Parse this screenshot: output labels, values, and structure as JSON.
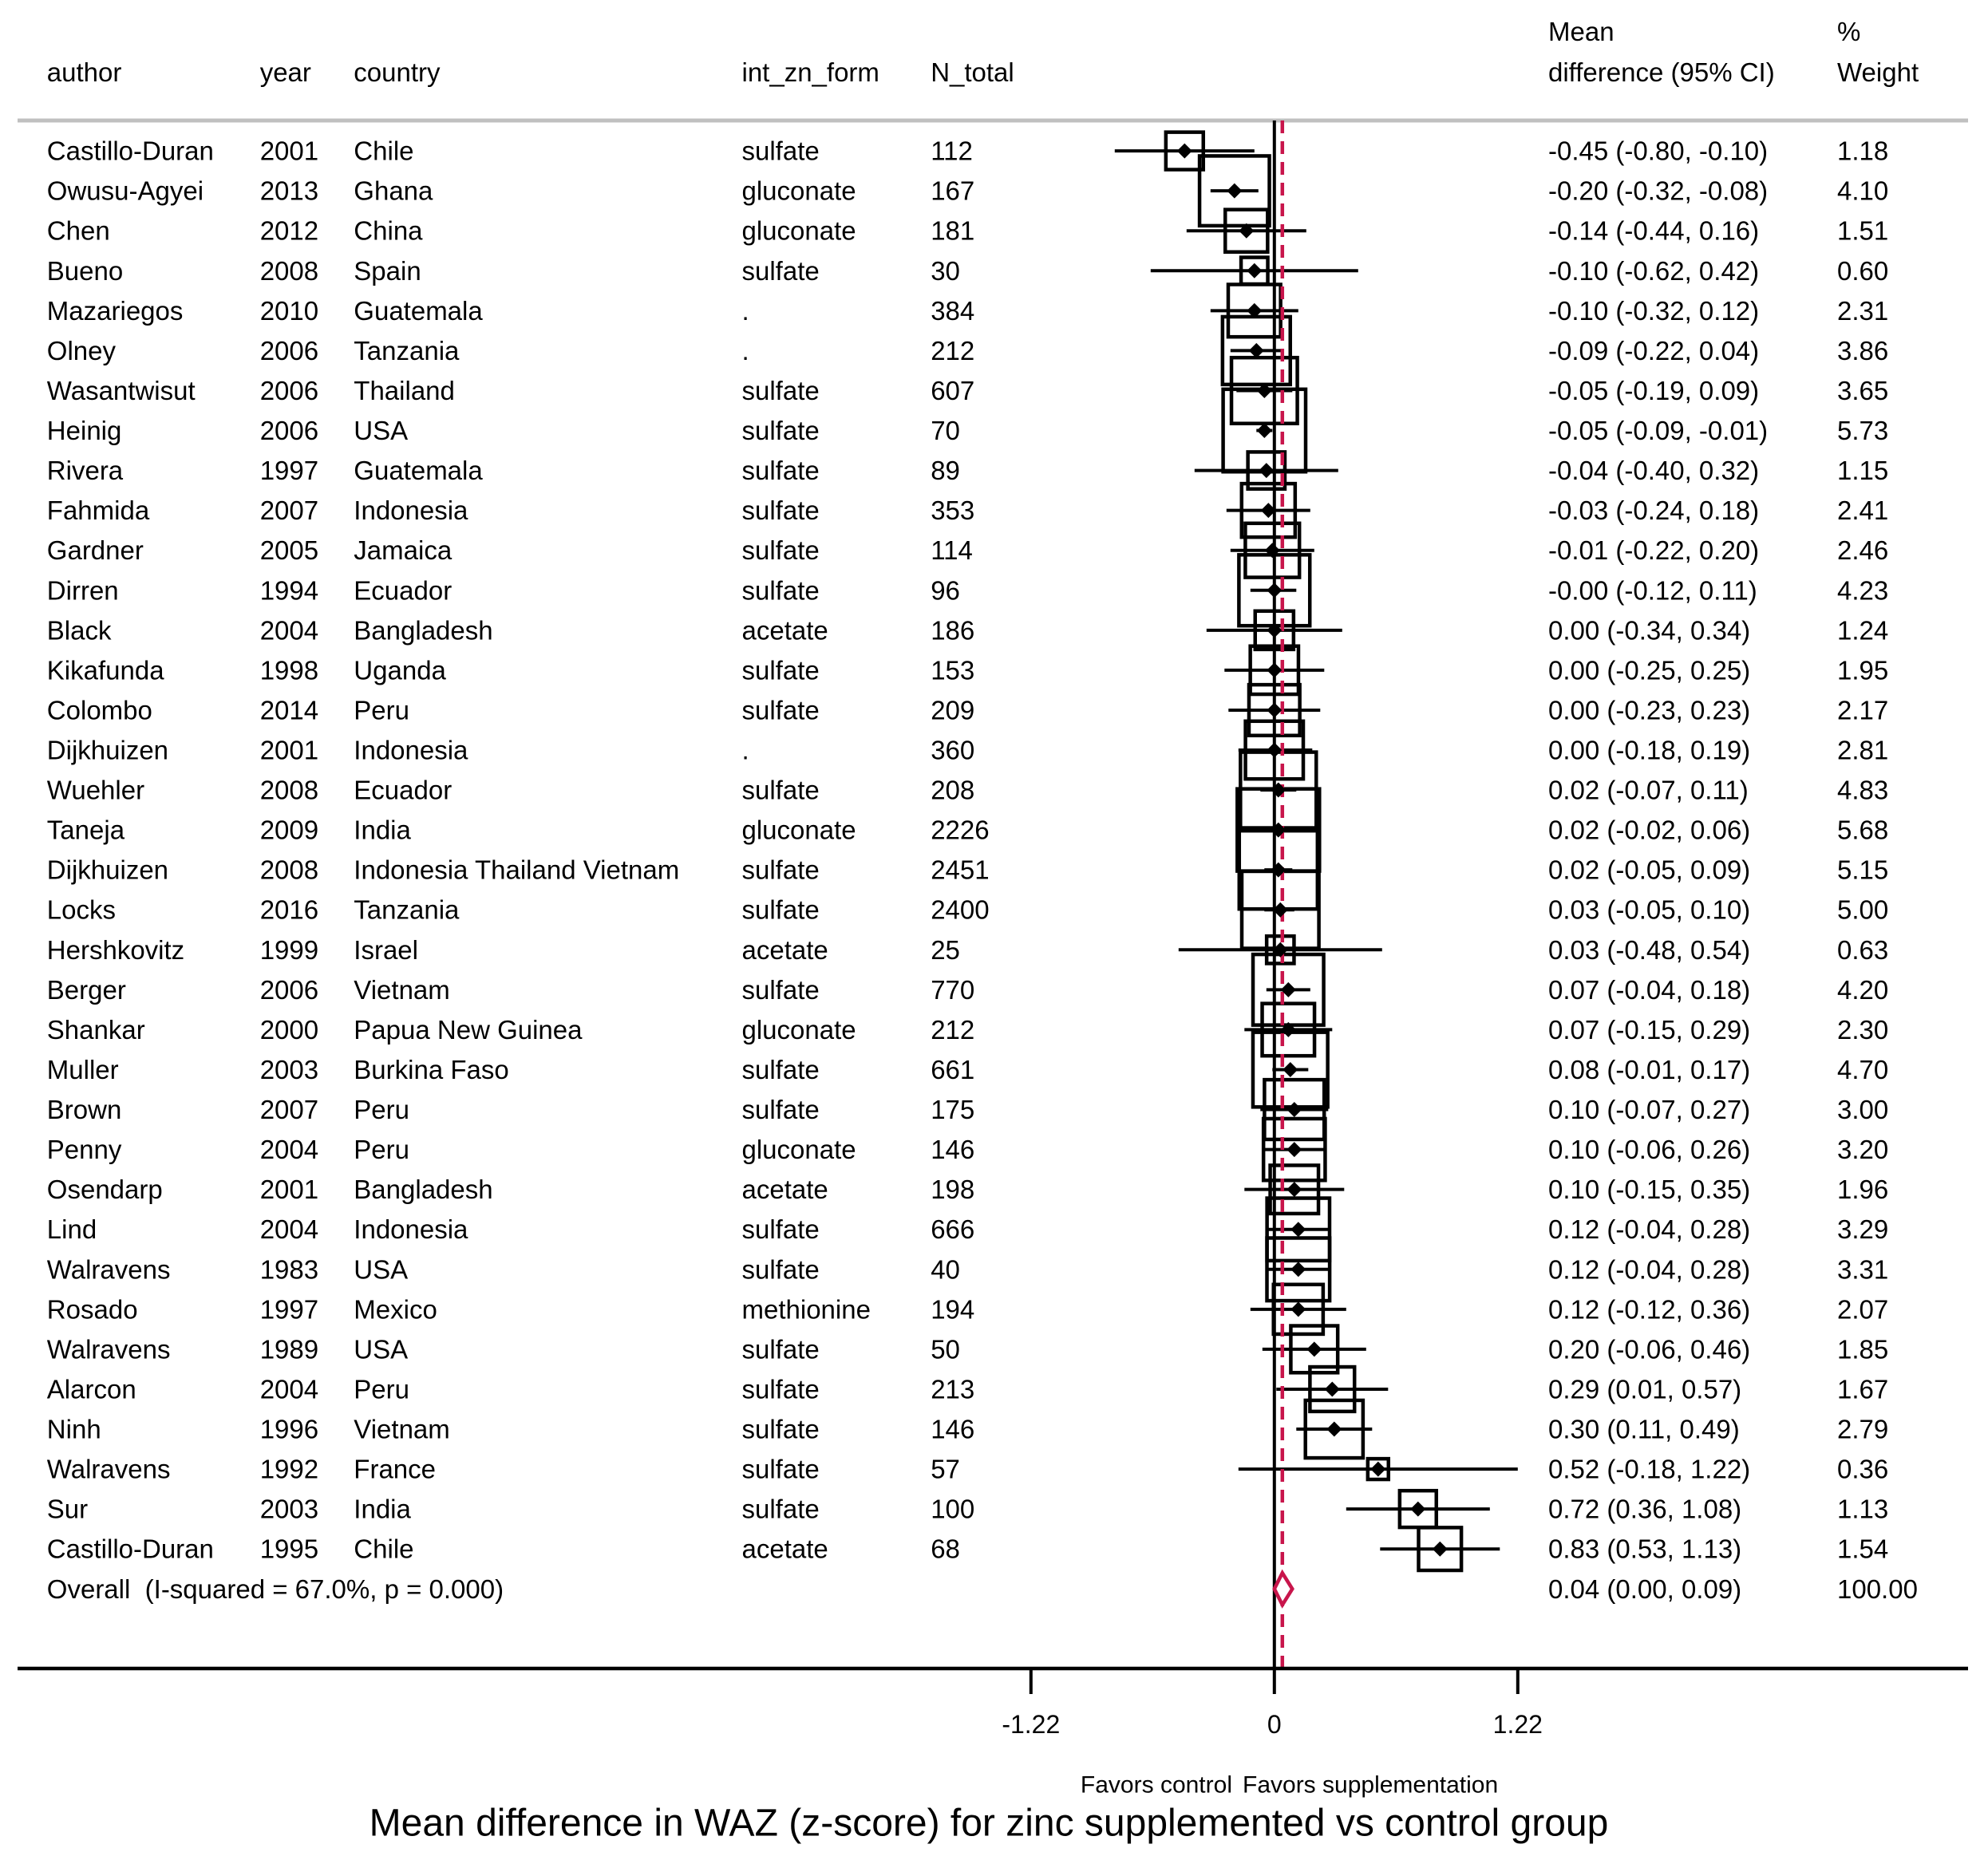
{
  "chart_data": {
    "type": "scatter",
    "title": "Mean difference in WAZ (z-score) for zinc supplemented vs control group",
    "columns": {
      "author": "author",
      "year": "year",
      "country": "country",
      "form": "int_zn_form",
      "n": "N_total",
      "ci_line1": "Mean",
      "ci_line2": "difference (95% CI)",
      "weight_line1": "%",
      "weight_line2": "Weight"
    },
    "rows": [
      {
        "author": "Castillo-Duran",
        "year": 2001,
        "country": "Chile",
        "form": "sulfate",
        "n": 112,
        "md": -0.45,
        "lo": -0.8,
        "hi": -0.1,
        "ci": "-0.45 (-0.80, -0.10)",
        "weight": "1.18"
      },
      {
        "author": "Owusu-Agyei",
        "year": 2013,
        "country": "Ghana",
        "form": "gluconate",
        "n": 167,
        "md": -0.2,
        "lo": -0.32,
        "hi": -0.08,
        "ci": "-0.20 (-0.32, -0.08)",
        "weight": "4.10"
      },
      {
        "author": "Chen",
        "year": 2012,
        "country": "China",
        "form": "gluconate",
        "n": 181,
        "md": -0.14,
        "lo": -0.44,
        "hi": 0.16,
        "ci": "-0.14 (-0.44, 0.16)",
        "weight": "1.51"
      },
      {
        "author": "Bueno",
        "year": 2008,
        "country": "Spain",
        "form": "sulfate",
        "n": 30,
        "md": -0.1,
        "lo": -0.62,
        "hi": 0.42,
        "ci": "-0.10 (-0.62, 0.42)",
        "weight": "0.60"
      },
      {
        "author": "Mazariegos",
        "year": 2010,
        "country": "Guatemala",
        "form": ".",
        "n": 384,
        "md": -0.1,
        "lo": -0.32,
        "hi": 0.12,
        "ci": "-0.10 (-0.32, 0.12)",
        "weight": "2.31"
      },
      {
        "author": "Olney",
        "year": 2006,
        "country": "Tanzania",
        "form": ".",
        "n": 212,
        "md": -0.09,
        "lo": -0.22,
        "hi": 0.04,
        "ci": "-0.09 (-0.22, 0.04)",
        "weight": "3.86"
      },
      {
        "author": "Wasantwisut",
        "year": 2006,
        "country": "Thailand",
        "form": "sulfate",
        "n": 607,
        "md": -0.05,
        "lo": -0.19,
        "hi": 0.09,
        "ci": "-0.05 (-0.19, 0.09)",
        "weight": "3.65"
      },
      {
        "author": "Heinig",
        "year": 2006,
        "country": "USA",
        "form": "sulfate",
        "n": 70,
        "md": -0.05,
        "lo": -0.09,
        "hi": -0.01,
        "ci": "-0.05 (-0.09, -0.01)",
        "weight": "5.73"
      },
      {
        "author": "Rivera",
        "year": 1997,
        "country": "Guatemala",
        "form": "sulfate",
        "n": 89,
        "md": -0.04,
        "lo": -0.4,
        "hi": 0.32,
        "ci": "-0.04 (-0.40, 0.32)",
        "weight": "1.15"
      },
      {
        "author": "Fahmida",
        "year": 2007,
        "country": "Indonesia",
        "form": "sulfate",
        "n": 353,
        "md": -0.03,
        "lo": -0.24,
        "hi": 0.18,
        "ci": "-0.03 (-0.24, 0.18)",
        "weight": "2.41"
      },
      {
        "author": "Gardner",
        "year": 2005,
        "country": "Jamaica",
        "form": "sulfate",
        "n": 114,
        "md": -0.01,
        "lo": -0.22,
        "hi": 0.2,
        "ci": "-0.01 (-0.22, 0.20)",
        "weight": "2.46"
      },
      {
        "author": "Dirren",
        "year": 1994,
        "country": "Ecuador",
        "form": "sulfate",
        "n": 96,
        "md": -0.0,
        "lo": -0.12,
        "hi": 0.11,
        "ci": "-0.00 (-0.12, 0.11)",
        "weight": "4.23"
      },
      {
        "author": "Black",
        "year": 2004,
        "country": "Bangladesh",
        "form": "acetate",
        "n": 186,
        "md": 0.0,
        "lo": -0.34,
        "hi": 0.34,
        "ci": "0.00 (-0.34, 0.34)",
        "weight": "1.24"
      },
      {
        "author": "Kikafunda",
        "year": 1998,
        "country": "Uganda",
        "form": "sulfate",
        "n": 153,
        "md": 0.0,
        "lo": -0.25,
        "hi": 0.25,
        "ci": "0.00 (-0.25, 0.25)",
        "weight": "1.95"
      },
      {
        "author": "Colombo",
        "year": 2014,
        "country": "Peru",
        "form": "sulfate",
        "n": 209,
        "md": 0.0,
        "lo": -0.23,
        "hi": 0.23,
        "ci": "0.00 (-0.23, 0.23)",
        "weight": "2.17"
      },
      {
        "author": "Dijkhuizen",
        "year": 2001,
        "country": "Indonesia",
        "form": ".",
        "n": 360,
        "md": 0.0,
        "lo": -0.18,
        "hi": 0.19,
        "ci": "0.00 (-0.18, 0.19)",
        "weight": "2.81"
      },
      {
        "author": "Wuehler",
        "year": 2008,
        "country": "Ecuador",
        "form": "sulfate",
        "n": 208,
        "md": 0.02,
        "lo": -0.07,
        "hi": 0.11,
        "ci": "0.02 (-0.07, 0.11)",
        "weight": "4.83"
      },
      {
        "author": "Taneja",
        "year": 2009,
        "country": "India",
        "form": "gluconate",
        "n": 2226,
        "md": 0.02,
        "lo": -0.02,
        "hi": 0.06,
        "ci": "0.02 (-0.02, 0.06)",
        "weight": "5.68"
      },
      {
        "author": "Dijkhuizen",
        "year": 2008,
        "country": "Indonesia Thailand Vietnam",
        "form": "sulfate",
        "n": 2451,
        "md": 0.02,
        "lo": -0.05,
        "hi": 0.09,
        "ci": "0.02 (-0.05, 0.09)",
        "weight": "5.15"
      },
      {
        "author": "Locks",
        "year": 2016,
        "country": "Tanzania",
        "form": "sulfate",
        "n": 2400,
        "md": 0.03,
        "lo": -0.05,
        "hi": 0.1,
        "ci": "0.03 (-0.05, 0.10)",
        "weight": "5.00"
      },
      {
        "author": "Hershkovitz",
        "year": 1999,
        "country": "Israel",
        "form": "acetate",
        "n": 25,
        "md": 0.03,
        "lo": -0.48,
        "hi": 0.54,
        "ci": "0.03 (-0.48, 0.54)",
        "weight": "0.63"
      },
      {
        "author": "Berger",
        "year": 2006,
        "country": "Vietnam",
        "form": "sulfate",
        "n": 770,
        "md": 0.07,
        "lo": -0.04,
        "hi": 0.18,
        "ci": "0.07 (-0.04, 0.18)",
        "weight": "4.20"
      },
      {
        "author": "Shankar",
        "year": 2000,
        "country": "Papua New Guinea",
        "form": "gluconate",
        "n": 212,
        "md": 0.07,
        "lo": -0.15,
        "hi": 0.29,
        "ci": "0.07 (-0.15, 0.29)",
        "weight": "2.30"
      },
      {
        "author": "Muller",
        "year": 2003,
        "country": "Burkina Faso",
        "form": "sulfate",
        "n": 661,
        "md": 0.08,
        "lo": -0.01,
        "hi": 0.17,
        "ci": "0.08 (-0.01, 0.17)",
        "weight": "4.70"
      },
      {
        "author": "Brown",
        "year": 2007,
        "country": "Peru",
        "form": "sulfate",
        "n": 175,
        "md": 0.1,
        "lo": -0.07,
        "hi": 0.27,
        "ci": "0.10 (-0.07, 0.27)",
        "weight": "3.00"
      },
      {
        "author": "Penny",
        "year": 2004,
        "country": "Peru",
        "form": "gluconate",
        "n": 146,
        "md": 0.1,
        "lo": -0.06,
        "hi": 0.26,
        "ci": "0.10 (-0.06, 0.26)",
        "weight": "3.20"
      },
      {
        "author": "Osendarp",
        "year": 2001,
        "country": "Bangladesh",
        "form": "acetate",
        "n": 198,
        "md": 0.1,
        "lo": -0.15,
        "hi": 0.35,
        "ci": "0.10 (-0.15, 0.35)",
        "weight": "1.96"
      },
      {
        "author": "Lind",
        "year": 2004,
        "country": "Indonesia",
        "form": "sulfate",
        "n": 666,
        "md": 0.12,
        "lo": -0.04,
        "hi": 0.28,
        "ci": "0.12 (-0.04, 0.28)",
        "weight": "3.29"
      },
      {
        "author": "Walravens",
        "year": 1983,
        "country": "USA",
        "form": "sulfate",
        "n": 40,
        "md": 0.12,
        "lo": -0.04,
        "hi": 0.28,
        "ci": "0.12 (-0.04, 0.28)",
        "weight": "3.31"
      },
      {
        "author": "Rosado",
        "year": 1997,
        "country": "Mexico",
        "form": "methionine",
        "n": 194,
        "md": 0.12,
        "lo": -0.12,
        "hi": 0.36,
        "ci": "0.12 (-0.12, 0.36)",
        "weight": "2.07"
      },
      {
        "author": "Walravens",
        "year": 1989,
        "country": "USA",
        "form": "sulfate",
        "n": 50,
        "md": 0.2,
        "lo": -0.06,
        "hi": 0.46,
        "ci": "0.20 (-0.06, 0.46)",
        "weight": "1.85"
      },
      {
        "author": "Alarcon",
        "year": 2004,
        "country": "Peru",
        "form": "sulfate",
        "n": 213,
        "md": 0.29,
        "lo": 0.01,
        "hi": 0.57,
        "ci": "0.29 (0.01, 0.57)",
        "weight": "1.67"
      },
      {
        "author": "Ninh",
        "year": 1996,
        "country": "Vietnam",
        "form": "sulfate",
        "n": 146,
        "md": 0.3,
        "lo": 0.11,
        "hi": 0.49,
        "ci": "0.30 (0.11, 0.49)",
        "weight": "2.79"
      },
      {
        "author": "Walravens",
        "year": 1992,
        "country": "France",
        "form": "sulfate",
        "n": 57,
        "md": 0.52,
        "lo": -0.18,
        "hi": 1.22,
        "ci": "0.52 (-0.18, 1.22)",
        "weight": "0.36"
      },
      {
        "author": "Sur",
        "year": 2003,
        "country": "India",
        "form": "sulfate",
        "n": 100,
        "md": 0.72,
        "lo": 0.36,
        "hi": 1.08,
        "ci": "0.72 (0.36, 1.08)",
        "weight": "1.13"
      },
      {
        "author": "Castillo-Duran",
        "year": 1995,
        "country": "Chile",
        "form": "acetate",
        "n": 68,
        "md": 0.83,
        "lo": 0.53,
        "hi": 1.13,
        "ci": "0.83 (0.53, 1.13)",
        "weight": "1.54"
      }
    ],
    "overall": {
      "label": "Overall  (I-squared = 67.0%, p = 0.000)",
      "md": 0.04,
      "lo": 0.0,
      "hi": 0.09,
      "ci": "0.04 (0.00, 0.09)",
      "weight": "100.00"
    },
    "null_value": 0,
    "xticks": [
      -1.22,
      0,
      1.22
    ],
    "xtick_labels": [
      "-1.22",
      "0",
      "1.22"
    ],
    "favors_left": "Favors control",
    "favors_right": "Favors supplementation"
  },
  "colors": {
    "marks": "#000000",
    "overall": "#c8154b",
    "separator": "#c0c0c0"
  }
}
